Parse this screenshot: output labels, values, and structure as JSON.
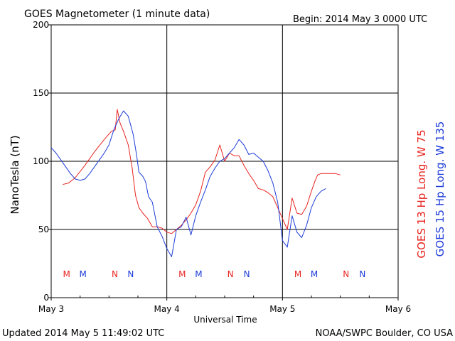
{
  "header": {
    "title": "GOES Magnetometer (1 minute data)",
    "begin": "Begin:  2014 May 3 0000 UTC"
  },
  "footer": {
    "updated": "Updated 2014 May  5 11:49:02 UTC",
    "credit": "NOAA/SWPC Boulder, CO USA"
  },
  "chart_data": {
    "type": "line",
    "title": "GOES Magnetometer (1 minute data)",
    "xlabel": "Universal Time",
    "ylabel": "NanoTesla (nT)",
    "xlim": [
      0,
      72
    ],
    "ylim": [
      0,
      200
    ],
    "xticks": [
      "May 3",
      "May 4",
      "May 5",
      "May 6"
    ],
    "yticks": [
      0,
      50,
      100,
      150,
      200
    ],
    "grid": true,
    "colors": {
      "red": "#e8241f",
      "blue": "#1c3cd8"
    },
    "series": [
      {
        "name": "GOES 13 Hp  Long. W 75",
        "color": "#e8241f",
        "x": [
          2.4,
          3.6,
          5,
          7,
          9,
          11,
          12.5,
          13.3,
          13.7,
          14.3,
          15,
          16,
          16.8,
          17.5,
          18.2,
          19,
          20,
          21,
          22,
          23,
          24,
          25,
          26,
          27,
          28,
          29,
          30,
          31,
          32,
          33,
          34,
          35,
          36,
          37,
          38,
          39,
          40,
          41,
          42,
          43,
          44,
          45,
          46,
          47,
          48,
          49,
          50,
          51,
          52,
          53,
          54,
          54.8,
          55.3,
          56,
          57,
          58,
          59,
          60
        ],
        "y": [
          83,
          84,
          88,
          97,
          107,
          116,
          122,
          123,
          138,
          128,
          122,
          112,
          95,
          75,
          66,
          62,
          58,
          52,
          52,
          51,
          48,
          47,
          50,
          53,
          57,
          62,
          68,
          78,
          92,
          96,
          101,
          112,
          100,
          106,
          104,
          104,
          97,
          91,
          86,
          80,
          79,
          77,
          74,
          66,
          58,
          50,
          73,
          62,
          61,
          67,
          78,
          86,
          90,
          91,
          91,
          91,
          91,
          90
        ]
      },
      {
        "name": "GOES 15 Hp  Long. W 135",
        "color": "#1c3cd8",
        "x": [
          0,
          1,
          2,
          3,
          4,
          5,
          6,
          7,
          8,
          9,
          10,
          11,
          12,
          13,
          14,
          15,
          16,
          17,
          17.7,
          18.2,
          19,
          19.6,
          20.2,
          21,
          22,
          23,
          24,
          25,
          26,
          27,
          28,
          29,
          30,
          31,
          32,
          33,
          34,
          35,
          36,
          37,
          38,
          39,
          40,
          41,
          42,
          43,
          44,
          45,
          46,
          47,
          48,
          49,
          50,
          51,
          52,
          53,
          54,
          55,
          56,
          57
        ],
        "y": [
          110,
          106,
          101,
          96,
          91,
          87,
          86,
          87,
          91,
          96,
          101,
          106,
          112,
          123,
          131,
          137,
          133,
          120,
          105,
          92,
          89,
          85,
          74,
          70,
          52,
          45,
          36,
          30,
          50,
          52,
          59,
          46,
          60,
          70,
          79,
          89,
          95,
          100,
          102,
          106,
          110,
          116,
          112,
          105,
          106,
          103,
          100,
          93,
          84,
          70,
          42,
          37,
          60,
          48,
          44,
          53,
          66,
          74,
          78,
          80
        ]
      }
    ],
    "markers": [
      {
        "label": "M",
        "x": 3.2,
        "color": "#e8241f"
      },
      {
        "label": "M",
        "x": 6.6,
        "color": "#1c3cd8"
      },
      {
        "label": "N",
        "x": 13.2,
        "color": "#e8241f"
      },
      {
        "label": "N",
        "x": 16.5,
        "color": "#1c3cd8"
      },
      {
        "label": "M",
        "x": 27.2,
        "color": "#e8241f"
      },
      {
        "label": "M",
        "x": 30.6,
        "color": "#1c3cd8"
      },
      {
        "label": "N",
        "x": 37.2,
        "color": "#e8241f"
      },
      {
        "label": "N",
        "x": 40.6,
        "color": "#1c3cd8"
      },
      {
        "label": "M",
        "x": 51.2,
        "color": "#e8241f"
      },
      {
        "label": "M",
        "x": 54.6,
        "color": "#1c3cd8"
      },
      {
        "label": "N",
        "x": 61.2,
        "color": "#e8241f"
      },
      {
        "label": "N",
        "x": 64.6,
        "color": "#1c3cd8"
      }
    ]
  }
}
